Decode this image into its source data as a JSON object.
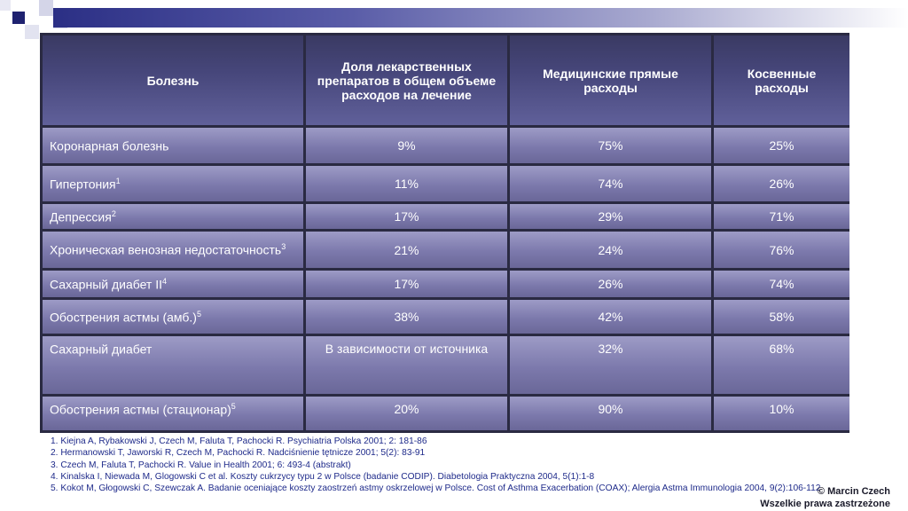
{
  "table": {
    "headers": [
      "Болезнь",
      "Доля лекарственных препаратов в общем объеме расходов на лечение",
      "Медицинские прямые расходы",
      "Косвенные расходы"
    ],
    "rows": [
      {
        "disease": "Коронарная болезнь",
        "sup": "",
        "drugs": "9%",
        "direct": "75%",
        "indirect": "25%"
      },
      {
        "disease": "Гипертония",
        "sup": "1",
        "drugs": "11%",
        "direct": "74%",
        "indirect": "26%"
      },
      {
        "disease": "Депрессия",
        "sup": "2",
        "drugs": "17%",
        "direct": "29%",
        "indirect": "71%"
      },
      {
        "disease": "Хроническая венозная недостаточность",
        "sup": "3",
        "drugs": "21%",
        "direct": "24%",
        "indirect": "76%"
      },
      {
        "disease": "Сахарный диабет II",
        "sup": "4",
        "drugs": "17%",
        "direct": "26%",
        "indirect": "74%"
      },
      {
        "disease": "Обострения астмы (амб.)",
        "sup": "5",
        "drugs": "38%",
        "direct": "42%",
        "indirect": "58%"
      },
      {
        "disease": "Сахарный диабет",
        "sup": "",
        "drugs": "В зависимости от источника",
        "direct": "32%",
        "indirect": "68%"
      },
      {
        "disease": "Обострения астмы (стационар)",
        "sup": "5",
        "drugs": "20%",
        "direct": "90%",
        "indirect": "10%"
      }
    ]
  },
  "references": [
    "1. Kiejna A, Rybakowski J, Czech M, Faluta T, Pachocki R.  Psychiatria Polska 2001; 2: 181-86",
    "2. Hermanowski T, Jaworski R, Czech M, Pachocki R. Nadciśnienie tętnicze 2001; 5(2): 83-91",
    "3. Czech M, Faluta T, Pachocki R. Value in Health 2001; 6: 493-4 (abstrakt)",
    "4. Kinalska I, Niewada M, Glogowski C et al. Koszty cukrzycy typu 2 w Polsce (badanie CODIP).  Diabetologia Praktyczna 2004, 5(1):1-8",
    "5. Kokot M, Głogowski C, Szewczak A. Badanie oceniające koszty zaostrzeń astmy oskrzelowej w Polsce. Cost of Asthma Exacerbation (COAX); Alergia Astma Immunologia 2004, 9(2):106-112"
  ],
  "footer": {
    "author": "© Marcin Czech",
    "rights": "Wszelkie prawa zastrzeżone"
  }
}
